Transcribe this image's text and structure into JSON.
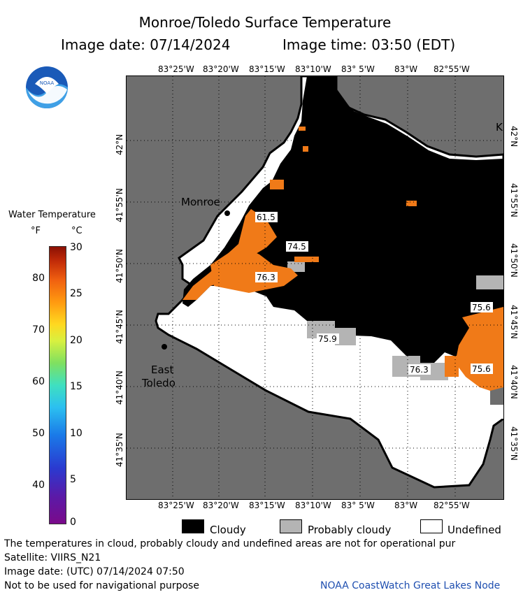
{
  "header": {
    "title": "Monroe/Toledo Surface Temperature",
    "image_date": "Image date: 07/14/2024",
    "image_time": "Image time: 03:50 (EDT)"
  },
  "logo": {
    "name": "noaa-logo",
    "text": "NOAA"
  },
  "legend": {
    "title": "Water Temperature",
    "unit_f": "°F",
    "unit_c": "°C",
    "f_ticks": [
      "40",
      "50",
      "60",
      "70",
      "80"
    ],
    "c_ticks": [
      "0",
      "5",
      "10",
      "15",
      "20",
      "25",
      "30"
    ]
  },
  "map": {
    "top_lon_labels": [
      "83°25'W",
      "83°20'W",
      "83°15'W",
      "83°10'W",
      "83° 5'W",
      "83°W",
      "82°55'W"
    ],
    "bottom_lon_labels": [
      "83°25'W",
      "83°20'W",
      "83°15'W",
      "83°10'W",
      "83° 5'W",
      "83°W",
      "82°55'W"
    ],
    "left_lat_labels": [
      "42°N",
      "41°55'N",
      "41°50'N",
      "41°45'N",
      "41°40'N",
      "41°35'N"
    ],
    "right_lat_labels": [
      "42°N",
      "41°55'N",
      "41°50'N",
      "41°45'N",
      "41°40'N",
      "41°35'N"
    ],
    "places": [
      "Monroe",
      "East",
      "Toledo",
      "K"
    ],
    "temperature_readings": [
      "61.5",
      "74.5",
      "76.3",
      "75.9",
      "76.3",
      "75.6",
      "75.6"
    ]
  },
  "key": {
    "cloudy": "Cloudy",
    "probably_cloudy": "Probably cloudy",
    "undefined": "Undefined"
  },
  "footer": {
    "disclaimer": "The temperatures in cloud, probably cloudy and undefined areas are not for operational pur",
    "satellite": "Satellite: VIIRS_N21",
    "utc_date": "Image date: (UTC) 07/14/2024  07:50",
    "navigation": "Not to be used for navigational purpose",
    "credit": "NOAA CoastWatch Great Lakes Node"
  },
  "colors": {
    "land": "#6e6e6e",
    "cloud": "#000000",
    "probably_cloudy": "#b4b4b4",
    "undefined": "#ffffff",
    "warm_water": "#f07a18",
    "credit_text": "#1f4fb0"
  }
}
